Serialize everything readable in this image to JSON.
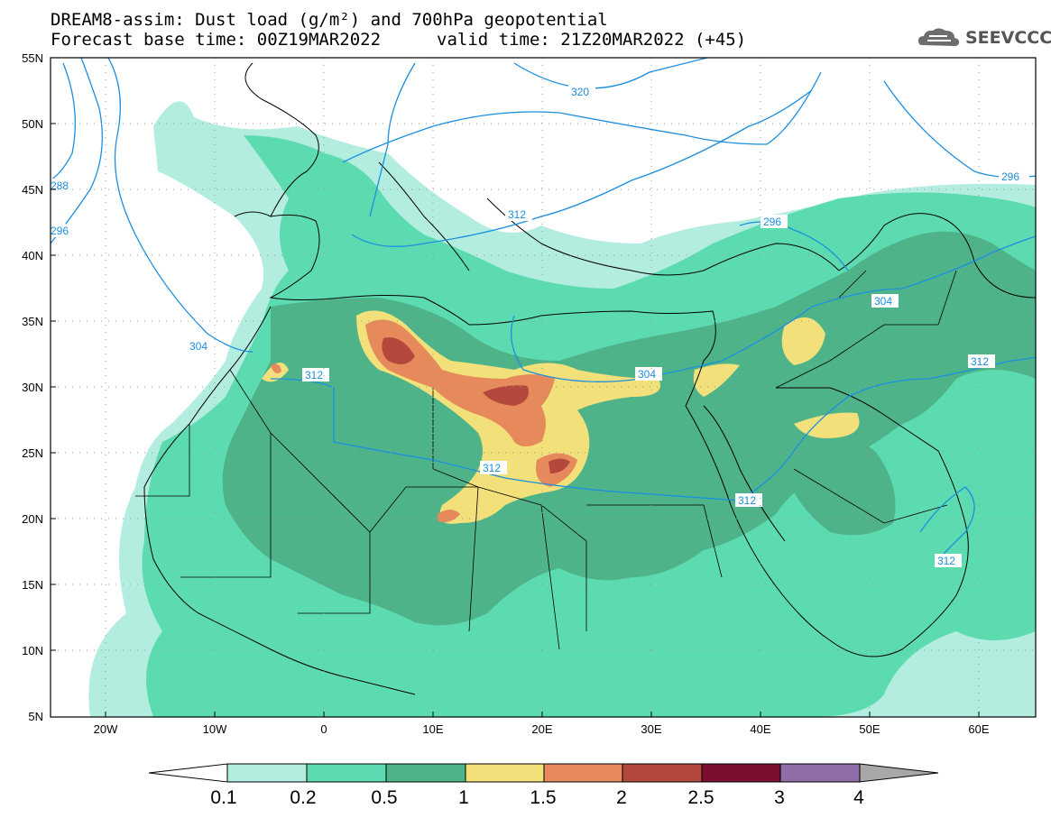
{
  "title": {
    "line1": "DREAM8-assim: Dust load (g/m²) and 700hPa geopotential",
    "line2": "Forecast base time: 00Z19MAR2022",
    "valid": "valid time: 21Z20MAR2022 (+45)"
  },
  "logo": {
    "text": "SEEVCCC",
    "icon": "cloud-icon"
  },
  "axes": {
    "lat_labels": [
      "55N",
      "50N",
      "45N",
      "40N",
      "35N",
      "30N",
      "25N",
      "20N",
      "15N",
      "10N",
      "5N"
    ],
    "lon_labels": [
      "20W",
      "10W",
      "0",
      "10E",
      "20E",
      "30E",
      "40E",
      "50E",
      "60E"
    ],
    "lon_range": [
      -25,
      65
    ],
    "lat_range": [
      5,
      55
    ],
    "grid": "dotted"
  },
  "contours": {
    "color": "#1a8fe0",
    "labels": [
      "320",
      "296",
      "288",
      "296",
      "312",
      "304",
      "312",
      "304",
      "312",
      "296",
      "304",
      "312",
      "312",
      "312"
    ]
  },
  "colorbar": {
    "colors": [
      "#b3ede0",
      "#5ddbb0",
      "#4fb38a",
      "#f2e07a",
      "#e68a5c",
      "#b5483c",
      "#7c0f2f",
      "#906ea8",
      "#a8a8a8"
    ],
    "under_color": "#ffffff",
    "labels": [
      "0.1",
      "0.2",
      "0.5",
      "1",
      "1.5",
      "2",
      "2.5",
      "3",
      "4"
    ]
  }
}
